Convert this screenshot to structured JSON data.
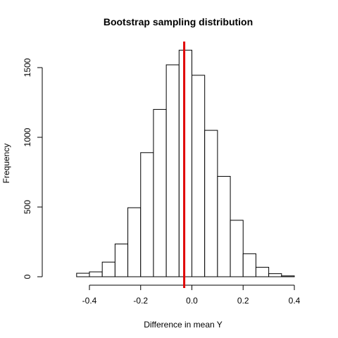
{
  "chart_data": {
    "type": "histogram",
    "title": "Bootstrap sampling distribution",
    "xlabel": "Difference in mean Y",
    "ylabel": "Frequency",
    "xlim": [
      -0.55,
      0.45
    ],
    "ylim": [
      0,
      1650
    ],
    "x_ticks": [
      -0.4,
      -0.2,
      0.0,
      0.2,
      0.4
    ],
    "x_tick_labels": [
      "-0.4",
      "-0.2",
      "0.0",
      "0.2",
      "0.4"
    ],
    "y_ticks": [
      0,
      500,
      1000,
      1500
    ],
    "y_tick_labels": [
      "0",
      "500",
      "1000",
      "1500"
    ],
    "bin_width": 0.05,
    "bins": [
      {
        "start": -0.45,
        "end": -0.4,
        "count": 25
      },
      {
        "start": -0.4,
        "end": -0.35,
        "count": 35
      },
      {
        "start": -0.35,
        "end": -0.3,
        "count": 105
      },
      {
        "start": -0.3,
        "end": -0.25,
        "count": 235
      },
      {
        "start": -0.25,
        "end": -0.2,
        "count": 495
      },
      {
        "start": -0.2,
        "end": -0.15,
        "count": 890
      },
      {
        "start": -0.15,
        "end": -0.1,
        "count": 1200
      },
      {
        "start": -0.1,
        "end": -0.05,
        "count": 1520
      },
      {
        "start": -0.05,
        "end": 0.0,
        "count": 1625
      },
      {
        "start": 0.0,
        "end": 0.05,
        "count": 1445
      },
      {
        "start": 0.05,
        "end": 0.1,
        "count": 1050
      },
      {
        "start": 0.1,
        "end": 0.15,
        "count": 720
      },
      {
        "start": 0.15,
        "end": 0.2,
        "count": 405
      },
      {
        "start": 0.2,
        "end": 0.25,
        "count": 165
      },
      {
        "start": 0.25,
        "end": 0.3,
        "count": 68
      },
      {
        "start": 0.3,
        "end": 0.35,
        "count": 22
      },
      {
        "start": 0.35,
        "end": 0.4,
        "count": 6
      }
    ],
    "reference_line": {
      "x": -0.03,
      "color": "#e00000"
    },
    "bar_fill": "#ffffff",
    "bar_stroke": "#000000",
    "grid": false,
    "legend": "none"
  }
}
